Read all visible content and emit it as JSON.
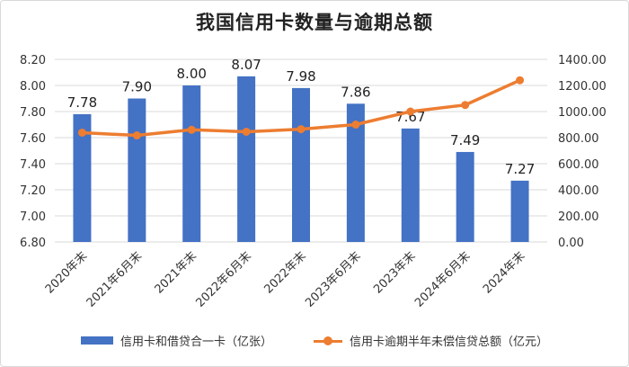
{
  "chart_data": {
    "type": "bar",
    "title": "我国信用卡数量与逾期总额",
    "categories": [
      "2020年末",
      "2021年6月末",
      "2021年末",
      "2022年6月末",
      "2022年末",
      "2023年6月末",
      "2023年末",
      "2024年6月末",
      "2024年末"
    ],
    "series": [
      {
        "name": "信用卡和借贷合一卡（亿张）",
        "type": "bar",
        "axis": "left",
        "color": "#4472c4",
        "values": [
          7.78,
          7.9,
          8.0,
          8.07,
          7.98,
          7.86,
          7.67,
          7.49,
          7.27
        ],
        "labels": [
          "7.78",
          "7.90",
          "8.00",
          "8.07",
          "7.98",
          "7.86",
          "7.67",
          "7.49",
          "7.27"
        ]
      },
      {
        "name": "信用卡逾期半年未偿信贷总额（亿元）",
        "type": "line",
        "axis": "right",
        "color": "#ed7d31",
        "values": [
          838,
          817,
          860,
          845,
          865,
          900,
          1000,
          1050,
          1240
        ]
      }
    ],
    "ylim_left": [
      6.8,
      8.2
    ],
    "yticks_left": [
      "8.20",
      "8.00",
      "7.80",
      "7.60",
      "7.40",
      "7.20",
      "7.00",
      "6.80"
    ],
    "ylim_right": [
      0,
      1400
    ],
    "yticks_right": [
      "1400.00",
      "1200.00",
      "1000.00",
      "800.00",
      "600.00",
      "400.00",
      "200.00",
      "0.00"
    ],
    "grid": true,
    "legend_position": "bottom"
  }
}
